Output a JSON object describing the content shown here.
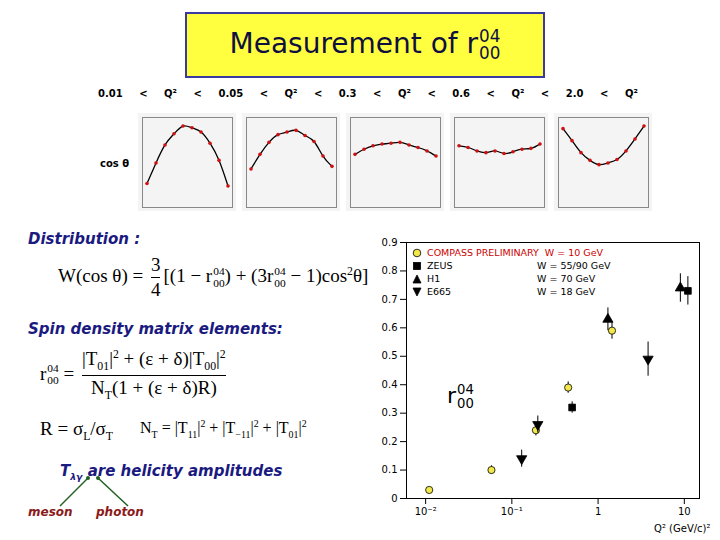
{
  "title": {
    "text": "Measurement of r",
    "sup": "04",
    "sub": "00"
  },
  "panels": {
    "q2_tokens": [
      "0.01",
      "<",
      "Q²",
      "<",
      "0.05",
      "<",
      "Q²",
      "<",
      "0.3",
      "<",
      "Q²",
      "<",
      "0.6",
      "<",
      "Q²",
      "<",
      "2.0",
      "<",
      "Q²"
    ],
    "label": "cos θ",
    "tick_labels": false,
    "xlim": [
      -1,
      1
    ],
    "ylim": [
      0,
      1.05
    ],
    "x": [
      -0.9,
      -0.7,
      -0.5,
      -0.3,
      -0.1,
      0.1,
      0.3,
      0.5,
      0.7,
      0.9
    ],
    "series": [
      [
        0.28,
        0.52,
        0.73,
        0.86,
        0.95,
        0.93,
        0.88,
        0.75,
        0.55,
        0.25
      ],
      [
        0.45,
        0.62,
        0.76,
        0.85,
        0.88,
        0.9,
        0.84,
        0.77,
        0.6,
        0.48
      ],
      [
        0.62,
        0.68,
        0.72,
        0.74,
        0.75,
        0.76,
        0.73,
        0.7,
        0.66,
        0.6
      ],
      [
        0.72,
        0.7,
        0.66,
        0.64,
        0.66,
        0.63,
        0.65,
        0.68,
        0.69,
        0.74
      ],
      [
        0.92,
        0.78,
        0.64,
        0.55,
        0.5,
        0.52,
        0.56,
        0.66,
        0.8,
        0.95
      ]
    ]
  },
  "formulas": {
    "distribution_label": "Distribution :",
    "distribution": [
      {
        "t": "W(cos θ) = "
      },
      {
        "num": [
          {
            "t": "3"
          }
        ],
        "den": [
          {
            "t": "4"
          }
        ]
      },
      {
        "t": "[(1 − r"
      },
      {
        "sup": "04",
        "sub": "00"
      },
      {
        "t": ") + (3r"
      },
      {
        "sup": "04",
        "sub": "00"
      },
      {
        "t": " − 1)cos"
      },
      {
        "sup": "2"
      },
      {
        "t": "θ]"
      }
    ],
    "sdme_label": "Spin density matrix elements:",
    "sdme": [
      {
        "t": "r"
      },
      {
        "sup": "04",
        "sub": "00"
      },
      {
        "t": " = "
      },
      {
        "num": [
          {
            "t": "|T"
          },
          {
            "sub": "01"
          },
          {
            "t": "|"
          },
          {
            "sup": "2"
          },
          {
            "t": " + (ε + δ)|T"
          },
          {
            "sub": "00"
          },
          {
            "t": "|"
          },
          {
            "sup": "2"
          }
        ],
        "den": [
          {
            "t": "N"
          },
          {
            "sub": "T"
          },
          {
            "t": "(1 + (ε + δ)R)"
          }
        ]
      }
    ],
    "ratio": [
      {
        "t": "R = σ"
      },
      {
        "sub": "L"
      },
      {
        "t": "/σ"
      },
      {
        "sub": "T"
      }
    ],
    "norm": [
      {
        "t": "N"
      },
      {
        "sub": "T"
      },
      {
        "t": " = |T"
      },
      {
        "sub": "11"
      },
      {
        "t": "|"
      },
      {
        "sup": "2"
      },
      {
        "t": " + |T"
      },
      {
        "sub": "−11"
      },
      {
        "t": "|"
      },
      {
        "sup": "2"
      },
      {
        "t": " + |T"
      },
      {
        "sub": "01"
      },
      {
        "t": "|"
      },
      {
        "sup": "2"
      }
    ],
    "helicity": [
      {
        "t": "T"
      },
      {
        "sub": "λγ"
      },
      {
        "t": " are helicity amplitudes"
      }
    ],
    "meson": "meson",
    "photon": "photon"
  },
  "chart_data": {
    "type": "scatter",
    "log": "x",
    "grid": false,
    "legend": "top-left",
    "xlabel": "Q² (GeV/c)²",
    "ylabel": {
      "text": "r",
      "sup": "04",
      "sub": "00"
    },
    "xlim": [
      0.006,
      15
    ],
    "xticks": [
      {
        "value": 0.01,
        "label": "10⁻²"
      },
      {
        "value": 0.1,
        "label": "10⁻¹"
      },
      1,
      10
    ],
    "ylim": [
      0,
      0.9
    ],
    "yticks": [
      0,
      0.1,
      0.2,
      0.3,
      0.4,
      0.5,
      0.6,
      0.7,
      0.8,
      0.9
    ],
    "series": [
      {
        "name": "COMPASS PRELIMINARY",
        "energy": "W = 10 GeV",
        "color": "#f2e84a",
        "marker": "circle",
        "x": [
          0.011,
          0.058,
          0.19,
          0.45,
          1.45
        ],
        "values": [
          0.03,
          0.1,
          0.24,
          0.39,
          0.59
        ],
        "errors": [
          0.01,
          0.015,
          0.02,
          0.02,
          0.03
        ]
      },
      {
        "name": "ZEUS",
        "energy": "W = 55/90 GeV",
        "color": "#000000",
        "marker": "square",
        "x": [
          0.5,
          11
        ],
        "values": [
          0.32,
          0.73
        ],
        "errors": [
          0.02,
          0.05
        ]
      },
      {
        "name": "H1",
        "energy": "W = 70 GeV",
        "color": "#000000",
        "marker": "triangle-up",
        "x": [
          1.3,
          9
        ],
        "values": [
          0.63,
          0.74
        ],
        "errors": [
          0.04,
          0.05
        ]
      },
      {
        "name": "E665",
        "energy": "W = 18 GeV",
        "color": "#000000",
        "marker": "triangle-down",
        "x": [
          0.13,
          0.2,
          3.8
        ],
        "values": [
          0.14,
          0.26,
          0.49
        ],
        "errors": [
          0.03,
          0.03,
          0.06
        ]
      }
    ]
  }
}
